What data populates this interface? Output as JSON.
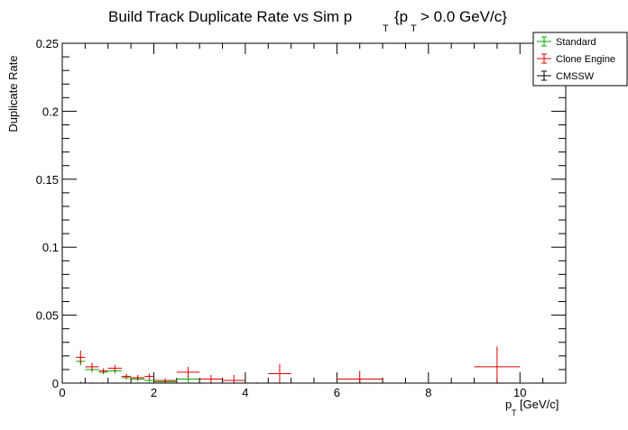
{
  "chart_data": {
    "type": "scatter",
    "title": {
      "main": "Build Track Duplicate Rate vs Sim p",
      "sub1": "T",
      "mid": "{p",
      "sub2": "T",
      "tail": "> 0.0 GeV/c}"
    },
    "xlabel": {
      "main": "p",
      "sub": "T",
      "rest": "[GeV/c]"
    },
    "ylabel": "Duplicate Rate",
    "xlim": [
      0,
      11
    ],
    "ylim": [
      0,
      0.25
    ],
    "x_ticks": [
      0,
      2,
      4,
      6,
      8,
      10
    ],
    "x_tick_labels": [
      "0",
      "2",
      "4",
      "6",
      "8",
      "10"
    ],
    "y_ticks": [
      0,
      0.05,
      0.1,
      0.15,
      0.2,
      0.25
    ],
    "y_tick_labels": [
      "0",
      "0.05",
      "0.1",
      "0.15",
      "0.2",
      "0.25"
    ],
    "grid": false,
    "legend_position": "top-right",
    "series": [
      {
        "name": "Standard",
        "color": "#00aa00",
        "points": [
          {
            "x": 0.4,
            "xerr": 0.1,
            "y": 0.016,
            "yerr": 0.003
          },
          {
            "x": 0.65,
            "xerr": 0.15,
            "y": 0.01,
            "yerr": 0.002
          },
          {
            "x": 0.9,
            "xerr": 0.1,
            "y": 0.008,
            "yerr": 0.0015
          },
          {
            "x": 1.15,
            "xerr": 0.15,
            "y": 0.009,
            "yerr": 0.002
          },
          {
            "x": 1.4,
            "xerr": 0.1,
            "y": 0.004,
            "yerr": 0.0015
          },
          {
            "x": 1.65,
            "xerr": 0.15,
            "y": 0.003,
            "yerr": 0.0015
          },
          {
            "x": 1.9,
            "xerr": 0.1,
            "y": 0.002,
            "yerr": 0.001
          },
          {
            "x": 2.25,
            "xerr": 0.25,
            "y": 0.001,
            "yerr": 0.001
          },
          {
            "x": 2.75,
            "xerr": 0.25,
            "y": 0.003,
            "yerr": 0.002
          }
        ]
      },
      {
        "name": "Clone Engine",
        "color": "#dd0000",
        "points": [
          {
            "x": 0.4,
            "xerr": 0.1,
            "y": 0.019,
            "yerr": 0.005
          },
          {
            "x": 0.65,
            "xerr": 0.15,
            "y": 0.012,
            "yerr": 0.003
          },
          {
            "x": 0.9,
            "xerr": 0.1,
            "y": 0.009,
            "yerr": 0.002
          },
          {
            "x": 1.15,
            "xerr": 0.15,
            "y": 0.011,
            "yerr": 0.0025
          },
          {
            "x": 1.4,
            "xerr": 0.1,
            "y": 0.005,
            "yerr": 0.002
          },
          {
            "x": 1.65,
            "xerr": 0.15,
            "y": 0.004,
            "yerr": 0.002
          },
          {
            "x": 1.9,
            "xerr": 0.1,
            "y": 0.005,
            "yerr": 0.002
          },
          {
            "x": 2.25,
            "xerr": 0.25,
            "y": 0.002,
            "yerr": 0.0015
          },
          {
            "x": 2.75,
            "xerr": 0.25,
            "y": 0.008,
            "yerr": 0.004
          },
          {
            "x": 3.25,
            "xerr": 0.25,
            "y": 0.003,
            "yerr": 0.003
          },
          {
            "x": 3.75,
            "xerr": 0.25,
            "y": 0.002,
            "yerr": 0.004
          },
          {
            "x": 4.75,
            "xerr": 0.25,
            "y": 0.007,
            "yerr": 0.007
          },
          {
            "x": 6.5,
            "xerr": 0.5,
            "y": 0.003,
            "yerr": 0.006
          },
          {
            "x": 9.5,
            "xerr": 0.5,
            "y": 0.012,
            "yerr": 0.015
          }
        ]
      },
      {
        "name": "CMSSW",
        "color": "#000000",
        "points": [
          {
            "x": 0.4,
            "xerr": 0.1,
            "y": 0.0,
            "yerr": 0.001
          },
          {
            "x": 0.65,
            "xerr": 0.15,
            "y": 0.0,
            "yerr": 0.0005
          },
          {
            "x": 0.9,
            "xerr": 0.1,
            "y": 0.0,
            "yerr": 0.0005
          },
          {
            "x": 1.15,
            "xerr": 0.15,
            "y": 0.0,
            "yerr": 0.0005
          },
          {
            "x": 1.4,
            "xerr": 0.1,
            "y": 0.0,
            "yerr": 0.0005
          },
          {
            "x": 1.65,
            "xerr": 0.15,
            "y": 0.0,
            "yerr": 0.0005
          },
          {
            "x": 1.9,
            "xerr": 0.1,
            "y": 0.0,
            "yerr": 0.0005
          },
          {
            "x": 2.25,
            "xerr": 0.25,
            "y": 0.0,
            "yerr": 0.0005
          },
          {
            "x": 2.75,
            "xerr": 0.25,
            "y": 0.0,
            "yerr": 0.0005
          },
          {
            "x": 3.25,
            "xerr": 0.25,
            "y": 0.0,
            "yerr": 0.0005
          },
          {
            "x": 3.75,
            "xerr": 0.25,
            "y": 0.0,
            "yerr": 0.0005
          },
          {
            "x": 4.25,
            "xerr": 0.25,
            "y": 0.0,
            "yerr": 0.0005
          },
          {
            "x": 4.75,
            "xerr": 0.25,
            "y": 0.0,
            "yerr": 0.0005
          },
          {
            "x": 5.5,
            "xerr": 0.5,
            "y": 0.0,
            "yerr": 0.0005
          },
          {
            "x": 6.5,
            "xerr": 0.5,
            "y": 0.0,
            "yerr": 0.0005
          },
          {
            "x": 7.5,
            "xerr": 0.5,
            "y": 0.0,
            "yerr": 0.0005
          },
          {
            "x": 8.5,
            "xerr": 0.5,
            "y": 0.0,
            "yerr": 0.0005
          },
          {
            "x": 9.5,
            "xerr": 0.5,
            "y": 0.0,
            "yerr": 0.0005
          },
          {
            "x": 10.5,
            "xerr": 0.5,
            "y": 0.0,
            "yerr": 0.0005
          }
        ]
      }
    ]
  }
}
